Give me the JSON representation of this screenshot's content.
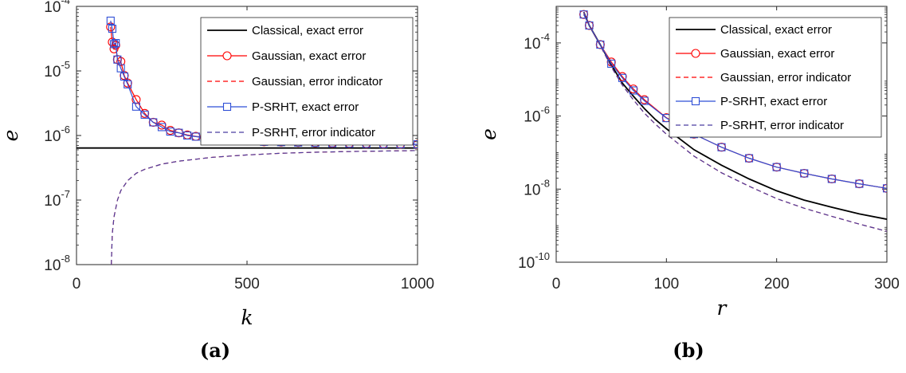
{
  "chart_data": [
    {
      "type": "line",
      "panel_label": "(a)",
      "xlabel": "k",
      "ylabel": "e",
      "xlim": [
        0,
        1000
      ],
      "ylim": [
        1e-08,
        0.0001
      ],
      "yscale": "log",
      "xticks": [
        0,
        500,
        1000
      ],
      "xtick_labels": [
        "0",
        "500",
        "1000"
      ],
      "yticks": [
        -8,
        -7,
        -6,
        -5,
        -4
      ],
      "ytick_labels": [
        {
          "base": "10",
          "exp": "-8"
        },
        {
          "base": "10",
          "exp": "-7"
        },
        {
          "base": "10",
          "exp": "-6"
        },
        {
          "base": "10",
          "exp": "-5"
        },
        {
          "base": "10",
          "exp": "-4"
        }
      ],
      "legend_position": "top-right",
      "series": [
        {
          "name": "Classical, exact error",
          "color": "#000000",
          "dash": "solid",
          "marker": "none",
          "x": [
            0,
            1000
          ],
          "y": [
            6.4e-07,
            6.4e-07
          ]
        },
        {
          "name": "Gaussian, exact error",
          "color": "#ff0000",
          "dash": "solid",
          "marker": "circle",
          "x": [
            100,
            105,
            110,
            115,
            120,
            130,
            140,
            150,
            175,
            200,
            225,
            250,
            275,
            300,
            325,
            350,
            375,
            400,
            450,
            500,
            550,
            600,
            650,
            700,
            750,
            800,
            850,
            900,
            950,
            1000
          ],
          "y": [
            4.8e-05,
            2.8e-05,
            2.2e-05,
            2.5e-05,
            1.5e-05,
            1.4e-05,
            8.5e-06,
            6.5e-06,
            3.6e-06,
            2.2e-06,
            1.6e-06,
            1.45e-06,
            1.2e-06,
            1.1e-06,
            1.02e-06,
            9.7e-07,
            9.3e-07,
            9e-07,
            8.6e-07,
            8.3e-07,
            8e-07,
            7.9e-07,
            7.8e-07,
            7.7e-07,
            7.6e-07,
            7.5e-07,
            7.45e-07,
            7.4e-07,
            7.35e-07,
            7.3e-07
          ]
        },
        {
          "name": "Gaussian, error indicator",
          "color": "#ff0000",
          "dash": "dashed",
          "marker": "none",
          "x": [
            102,
            105,
            110,
            120,
            130,
            150,
            175,
            200,
            250,
            300,
            400,
            500,
            600,
            700,
            800,
            900,
            1000
          ],
          "y": [
            1e-08,
            3e-08,
            5.5e-08,
            1e-07,
            1.4e-07,
            2e-07,
            2.6e-07,
            3e-07,
            3.6e-07,
            4e-07,
            4.6e-07,
            5e-07,
            5.3e-07,
            5.5e-07,
            5.65e-07,
            5.75e-07,
            5.85e-07
          ]
        },
        {
          "name": "P-SRHT, exact error",
          "color": "#2f4fd6",
          "dash": "solid",
          "marker": "square",
          "x": [
            100,
            105,
            110,
            115,
            120,
            130,
            140,
            150,
            175,
            200,
            225,
            250,
            275,
            300,
            325,
            350,
            375,
            400,
            450,
            500,
            550,
            600,
            650,
            700,
            750,
            800,
            850,
            900,
            950,
            1000
          ],
          "y": [
            6e-05,
            4.5e-05,
            2.6e-05,
            2.7e-05,
            1.5e-05,
            1.1e-05,
            8.2e-06,
            6.2e-06,
            2.8e-06,
            2.1e-06,
            1.6e-06,
            1.35e-06,
            1.15e-06,
            1.1e-06,
            1e-06,
            9.6e-07,
            9.2e-07,
            8.9e-07,
            8.5e-07,
            8.2e-07,
            8e-07,
            7.9e-07,
            7.8e-07,
            7.7e-07,
            7.6e-07,
            7.5e-07,
            7.45e-07,
            7.4e-07,
            7.35e-07,
            7.3e-07
          ]
        },
        {
          "name": "P-SRHT, error indicator",
          "color": "#4b3fa0",
          "dash": "dashed",
          "marker": "none",
          "x": [
            102,
            105,
            110,
            120,
            130,
            150,
            175,
            200,
            250,
            300,
            400,
            500,
            600,
            700,
            800,
            900,
            1000
          ],
          "y": [
            1e-08,
            3e-08,
            5.5e-08,
            1e-07,
            1.4e-07,
            2e-07,
            2.6e-07,
            3e-07,
            3.6e-07,
            4e-07,
            4.6e-07,
            5e-07,
            5.3e-07,
            5.5e-07,
            5.65e-07,
            5.75e-07,
            5.85e-07
          ]
        }
      ]
    },
    {
      "type": "line",
      "panel_label": "(b)",
      "xlabel": "r",
      "ylabel": "e",
      "xlim": [
        0,
        300
      ],
      "ylim": [
        1e-10,
        0.001
      ],
      "yscale": "log",
      "xticks": [
        0,
        100,
        200,
        300
      ],
      "xtick_labels": [
        "0",
        "100",
        "200",
        "300"
      ],
      "yticks": [
        -10,
        -8,
        -6,
        -4
      ],
      "ytick_labels": [
        {
          "base": "10",
          "exp": "-10"
        },
        {
          "base": "10",
          "exp": "-8"
        },
        {
          "base": "10",
          "exp": "-6"
        },
        {
          "base": "10",
          "exp": "-4"
        }
      ],
      "legend_position": "top-right",
      "series": [
        {
          "name": "Classical, exact error",
          "color": "#000000",
          "dash": "solid",
          "marker": "none",
          "x": [
            25,
            30,
            40,
            50,
            60,
            70,
            80,
            90,
            100,
            125,
            150,
            175,
            200,
            225,
            250,
            275,
            300
          ],
          "y": [
            0.0007,
            0.0003,
            9e-05,
            2.5e-05,
            8e-06,
            3.5e-06,
            1.6e-06,
            8e-07,
            4.5e-07,
            1.2e-07,
            4.5e-08,
            1.9e-08,
            9e-09,
            5e-09,
            3.2e-09,
            2.1e-09,
            1.5e-09
          ]
        },
        {
          "name": "Gaussian, exact error",
          "color": "#ff0000",
          "dash": "solid",
          "marker": "circle",
          "x": [
            25,
            30,
            40,
            50,
            60,
            70,
            80,
            100,
            125,
            150,
            175,
            200,
            225,
            250,
            275,
            300
          ],
          "y": [
            0.0006,
            0.0003,
            9e-05,
            3e-05,
            1.2e-05,
            5.5e-06,
            2.8e-06,
            9e-07,
            3.2e-07,
            1.4e-07,
            7e-08,
            4e-08,
            2.7e-08,
            1.9e-08,
            1.4e-08,
            1.05e-08
          ]
        },
        {
          "name": "Gaussian, error indicator",
          "color": "#ff0000",
          "dash": "dashed",
          "marker": "none",
          "x": [
            25,
            30,
            40,
            50,
            60,
            70,
            80,
            90,
            100,
            125,
            150,
            175,
            200,
            225,
            250,
            275,
            300
          ],
          "y": [
            0.0007,
            0.0003,
            8.5e-05,
            2.2e-05,
            7e-06,
            2.8e-06,
            1.2e-06,
            6e-07,
            3.2e-07,
            8e-08,
            2.8e-08,
            1.2e-08,
            5.5e-09,
            3e-09,
            1.8e-09,
            1.1e-09,
            7e-10
          ]
        },
        {
          "name": "P-SRHT, exact error",
          "color": "#2f4fd6",
          "dash": "solid",
          "marker": "square",
          "x": [
            25,
            30,
            40,
            50,
            60,
            70,
            80,
            100,
            125,
            150,
            175,
            200,
            225,
            250,
            275,
            300
          ],
          "y": [
            0.0006,
            0.0003,
            9e-05,
            2.7e-05,
            1.1e-05,
            5e-06,
            2.6e-06,
            8.8e-07,
            3.2e-07,
            1.4e-07,
            7e-08,
            4e-08,
            2.7e-08,
            1.9e-08,
            1.4e-08,
            1.05e-08
          ]
        },
        {
          "name": "P-SRHT, error indicator",
          "color": "#4b3fa0",
          "dash": "dashed",
          "marker": "none",
          "x": [
            25,
            30,
            40,
            50,
            60,
            70,
            80,
            90,
            100,
            125,
            150,
            175,
            200,
            225,
            250,
            275,
            300
          ],
          "y": [
            0.0007,
            0.0003,
            8.5e-05,
            2.2e-05,
            7e-06,
            2.8e-06,
            1.2e-06,
            6e-07,
            3.2e-07,
            8e-08,
            2.8e-08,
            1.2e-08,
            5.5e-09,
            3e-09,
            1.8e-09,
            1.1e-09,
            7e-10
          ]
        }
      ]
    }
  ]
}
